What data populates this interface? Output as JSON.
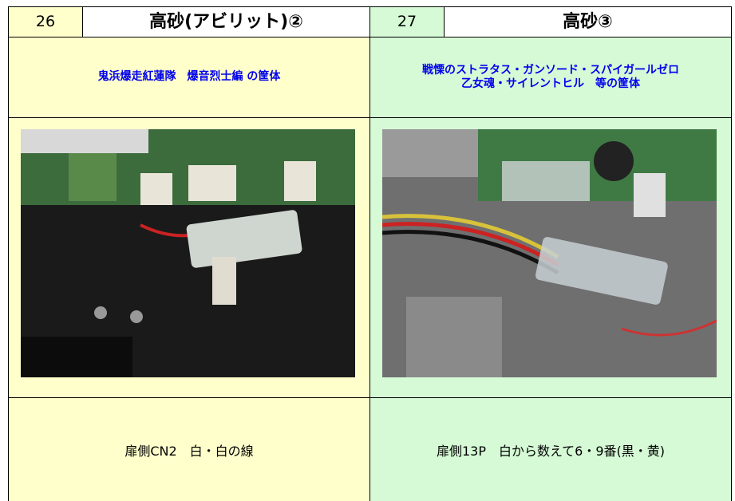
{
  "panels": [
    {
      "number": "26",
      "title": "高砂(アビリット)②",
      "subtitle": [
        "鬼浜爆走紅蓮隊　爆音烈士編 の筐体"
      ],
      "caption": "扉側CN2　白・白の線"
    },
    {
      "number": "27",
      "title": "高砂③",
      "subtitle": [
        "戦慄のストラタス・ガンソード・スパイガールゼロ",
        "乙女魂・サイレントヒル　等の筐体"
      ],
      "caption": "扉側13P　白から数えて6・9番(黒・黄)"
    }
  ]
}
